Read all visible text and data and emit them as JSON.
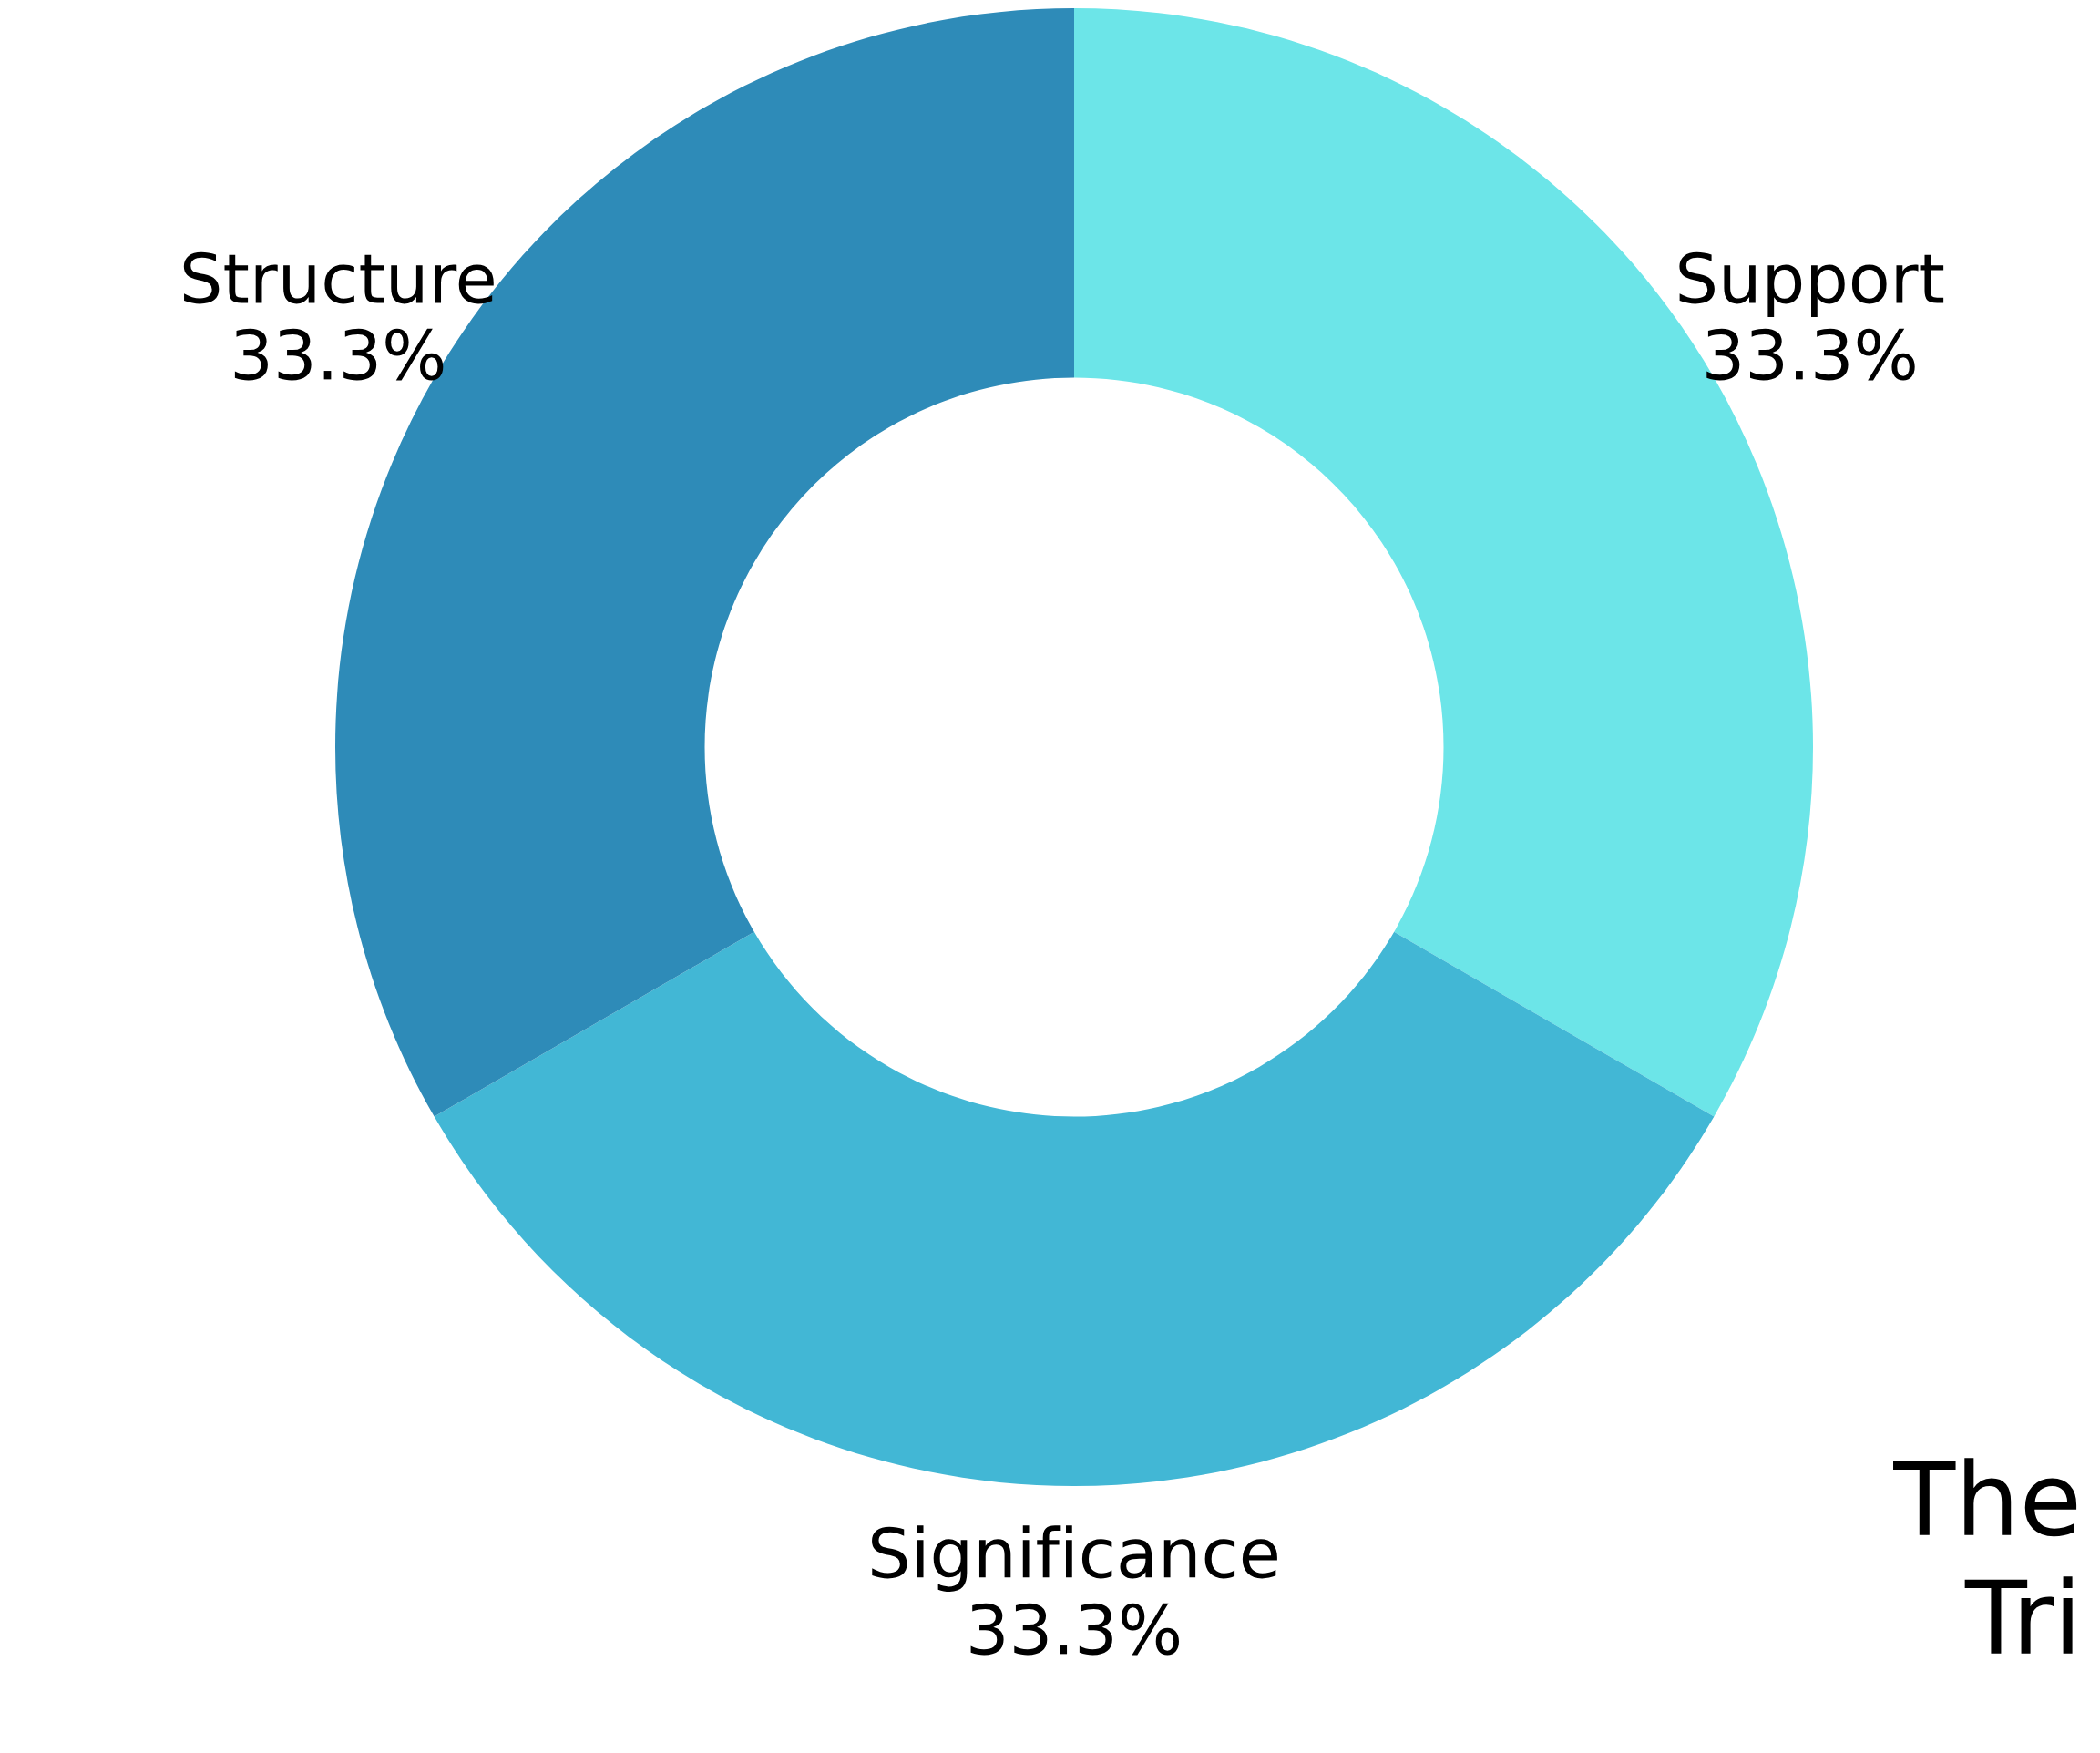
{
  "chart_data": {
    "type": "donut",
    "categories": [
      "Support",
      "Significance",
      "Structure"
    ],
    "values": [
      33.3,
      33.3,
      33.3
    ],
    "value_labels": [
      "33.3%",
      "33.3%",
      "33.3%"
    ],
    "colors": [
      "#6ce5e8",
      "#42b7d5",
      "#2e8bb8"
    ],
    "annotations": [
      "The",
      "Tri"
    ]
  }
}
